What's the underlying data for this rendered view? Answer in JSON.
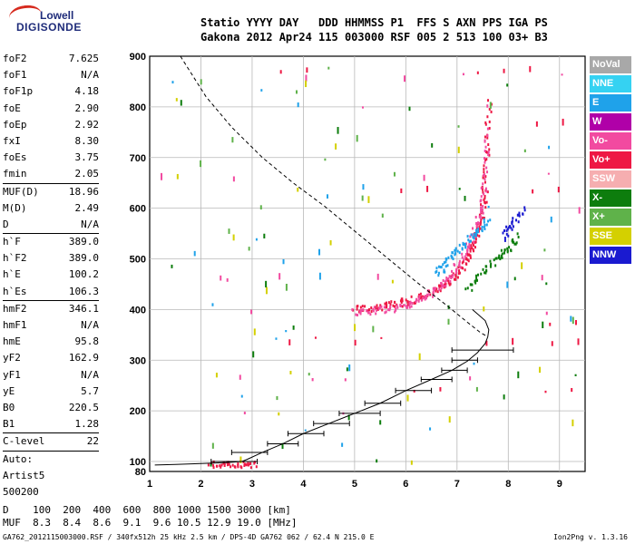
{
  "logo": {
    "line1": "Lowell",
    "line2": "DIGISONDE"
  },
  "header": {
    "line1": "Statio YYYY DAY   DDD HHMMSS P1  FFS S AXN PPS IGA PS",
    "line2": "Gakona 2012 Apr24 115 003000 RSF 005 2 513 100 03+ B3"
  },
  "params": {
    "group1": [
      {
        "label": "foF2",
        "value": "7.625"
      },
      {
        "label": "foF1",
        "value": "N/A"
      },
      {
        "label": "foF1p",
        "value": "4.18"
      },
      {
        "label": "foE",
        "value": "2.90"
      },
      {
        "label": "foEp",
        "value": "2.92"
      },
      {
        "label": "fxI",
        "value": "8.30"
      },
      {
        "label": "foEs",
        "value": "3.75"
      },
      {
        "label": "fmin",
        "value": "2.05"
      }
    ],
    "group2": [
      {
        "label": "MUF(D)",
        "value": "18.96"
      },
      {
        "label": "M(D)",
        "value": "2.49"
      },
      {
        "label": "D",
        "value": "N/A"
      }
    ],
    "group3": [
      {
        "label": "h`F",
        "value": "389.0"
      },
      {
        "label": "h`F2",
        "value": "389.0"
      },
      {
        "label": "h`E",
        "value": "100.2"
      },
      {
        "label": "h`Es",
        "value": "106.3"
      }
    ],
    "group4": [
      {
        "label": "hmF2",
        "value": "346.1"
      },
      {
        "label": "hmF1",
        "value": "N/A"
      },
      {
        "label": "hmE",
        "value": "95.8"
      },
      {
        "label": "yF2",
        "value": "162.9"
      },
      {
        "label": "yF1",
        "value": "N/A"
      },
      {
        "label": "yE",
        "value": "5.7"
      },
      {
        "label": "B0",
        "value": "220.5"
      },
      {
        "label": "B1",
        "value": "1.28"
      }
    ],
    "group5": [
      {
        "label": "C-level",
        "value": "22"
      }
    ],
    "auto_label": "Auto:",
    "auto_name": "Artist5",
    "auto_code": "500200"
  },
  "legend": [
    {
      "label": "NoVal",
      "color": "#a8a8a8"
    },
    {
      "label": "NNE",
      "color": "#35d2f2"
    },
    {
      "label": "E",
      "color": "#1fa2ea"
    },
    {
      "label": "W",
      "color": "#b000a8"
    },
    {
      "label": "Vo-",
      "color": "#f24aa0"
    },
    {
      "label": "Vo+",
      "color": "#ee1844"
    },
    {
      "label": "SSW",
      "color": "#f6aeb0"
    },
    {
      "label": "X-",
      "color": "#0d7d0d"
    },
    {
      "label": "X+",
      "color": "#5fb24a"
    },
    {
      "label": "SSE",
      "color": "#d4d000"
    },
    {
      "label": "NNW",
      "color": "#1a1ad0"
    }
  ],
  "footer": {
    "d_row": "D    100  200  400  600  800 1000 1500 3000 [km]",
    "muf_row": "MUF  8.3  8.4  8.6  9.1  9.6 10.5 12.9 19.0 [MHz]",
    "source": "GA762_2012115003000.RSF / 340fx512h 25 kHz 2.5 km / DPS-4D GA762 062 / 62.4 N 215.0 E",
    "version": "Ion2Png v. 1.3.16"
  },
  "chart_data": {
    "type": "scatter",
    "xlim": [
      1,
      9.5
    ],
    "ylim": [
      80,
      900
    ],
    "xticks": [
      "1",
      "2",
      "3",
      "4",
      "5",
      "6",
      "7",
      "8",
      "9"
    ],
    "yticks": [
      "80",
      "100",
      "200",
      "300",
      "400",
      "500",
      "600",
      "700",
      "800",
      "900"
    ],
    "grid": true,
    "ne_profile": {
      "x": [
        1.1,
        1.5,
        2.0,
        2.5,
        2.8,
        2.9,
        3.2,
        3.6,
        4.0,
        4.5,
        5.0,
        5.5,
        6.0,
        6.5,
        6.9,
        7.2,
        7.4,
        7.55,
        7.6,
        7.62,
        7.55,
        7.3
      ],
      "y": [
        93,
        94,
        96,
        98,
        100,
        104,
        118,
        135,
        155,
        175,
        195,
        215,
        240,
        262,
        280,
        298,
        315,
        333,
        346,
        360,
        378,
        400
      ]
    },
    "dashed_profile": {
      "x": [
        1.6,
        2.1,
        2.6,
        3.2,
        3.8,
        4.4,
        5.0,
        5.6,
        6.2,
        6.8,
        7.2,
        7.45,
        7.6
      ],
      "y": [
        900,
        820,
        760,
        700,
        650,
        605,
        555,
        505,
        455,
        408,
        375,
        355,
        346
      ]
    },
    "error_bars": [
      {
        "y": 100,
        "x1": 2.2,
        "x2": 3.1
      },
      {
        "y": 118,
        "x1": 2.6,
        "x2": 3.3
      },
      {
        "y": 135,
        "x1": 3.3,
        "x2": 3.9
      },
      {
        "y": 155,
        "x1": 3.7,
        "x2": 4.4
      },
      {
        "y": 175,
        "x1": 4.2,
        "x2": 4.9
      },
      {
        "y": 195,
        "x1": 4.7,
        "x2": 5.5
      },
      {
        "y": 215,
        "x1": 5.2,
        "x2": 5.9
      },
      {
        "y": 240,
        "x1": 5.8,
        "x2": 6.5
      },
      {
        "y": 262,
        "x1": 6.3,
        "x2": 6.9
      },
      {
        "y": 280,
        "x1": 6.7,
        "x2": 7.2
      },
      {
        "y": 300,
        "x1": 6.9,
        "x2": 7.4
      },
      {
        "y": 320,
        "x1": 6.9,
        "x2": 8.1
      }
    ],
    "traces": [
      {
        "series": "Vo+",
        "color": "#ee1844",
        "x": [
          5.0,
          5.3,
          5.6,
          5.9,
          6.2,
          6.5,
          6.8,
          7.0,
          7.2,
          7.3,
          7.4,
          7.5,
          7.55,
          7.6,
          7.62
        ],
        "y": [
          400,
          402,
          406,
          412,
          420,
          432,
          450,
          470,
          495,
          520,
          550,
          590,
          640,
          720,
          820
        ]
      },
      {
        "series": "Vo-",
        "color": "#f24aa0",
        "x": [
          5.0,
          5.4,
          5.8,
          6.1,
          6.4,
          6.7,
          6.9,
          7.1,
          7.3,
          7.45,
          7.55,
          7.6
        ],
        "y": [
          395,
          398,
          402,
          410,
          425,
          445,
          470,
          500,
          540,
          590,
          660,
          760
        ]
      },
      {
        "series": "E",
        "color": "#1fa2ea",
        "x": [
          6.6,
          6.8,
          7.0,
          7.2,
          7.4,
          7.6
        ],
        "y": [
          470,
          495,
          515,
          535,
          555,
          580
        ]
      },
      {
        "series": "X-",
        "color": "#0d7d0d",
        "x": [
          7.2,
          7.5,
          7.8,
          8.0,
          8.2
        ],
        "y": [
          440,
          470,
          500,
          520,
          545
        ]
      },
      {
        "series": "NNW",
        "color": "#1a1ad0",
        "x": [
          7.9,
          8.1,
          8.3
        ],
        "y": [
          540,
          570,
          600
        ]
      },
      {
        "series": "Vo+",
        "color": "#ee1844",
        "x": [
          2.2,
          2.5,
          2.8,
          3.1
        ],
        "y": [
          93,
          93,
          94,
          94
        ]
      }
    ]
  }
}
